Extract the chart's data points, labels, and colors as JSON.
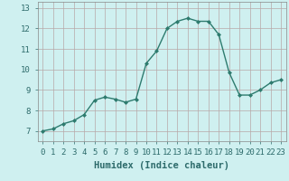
{
  "x": [
    0,
    1,
    2,
    3,
    4,
    5,
    6,
    7,
    8,
    9,
    10,
    11,
    12,
    13,
    14,
    15,
    16,
    17,
    18,
    19,
    20,
    21,
    22,
    23
  ],
  "y": [
    7.0,
    7.1,
    7.35,
    7.5,
    7.8,
    8.5,
    8.65,
    8.55,
    8.4,
    8.55,
    10.3,
    10.9,
    12.0,
    12.35,
    12.5,
    12.35,
    12.35,
    11.7,
    9.85,
    8.75,
    8.75,
    9.0,
    9.35,
    9.5
  ],
  "line_color": "#2d7b6e",
  "marker": "D",
  "marker_size": 2.0,
  "background_color": "#cff0f0",
  "grid_color": "#b8a8a8",
  "xlabel": "Humidex (Indice chaleur)",
  "xlabel_fontsize": 7.5,
  "xlim": [
    -0.5,
    23.5
  ],
  "ylim": [
    6.5,
    13.3
  ],
  "yticks": [
    7,
    8,
    9,
    10,
    11,
    12,
    13
  ],
  "xticks": [
    0,
    1,
    2,
    3,
    4,
    5,
    6,
    7,
    8,
    9,
    10,
    11,
    12,
    13,
    14,
    15,
    16,
    17,
    18,
    19,
    20,
    21,
    22,
    23
  ],
  "tick_fontsize": 6.5,
  "linewidth": 1.0
}
